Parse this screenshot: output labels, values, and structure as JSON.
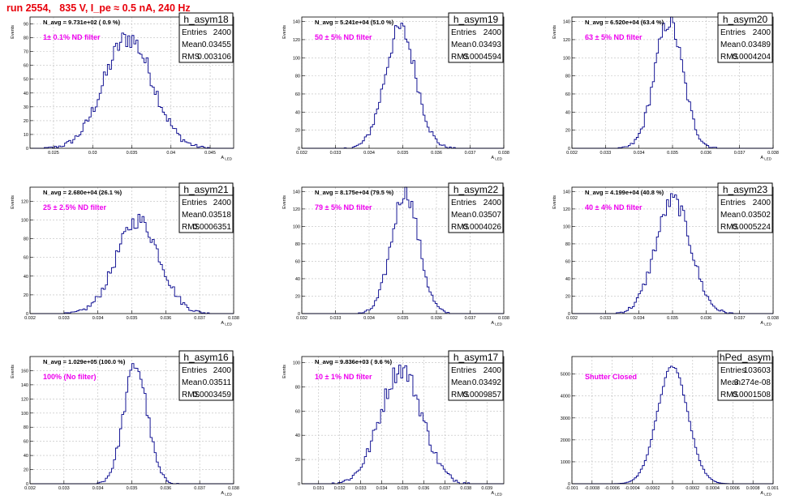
{
  "page": {
    "title": "run 2554,   835 V, I_pe ≈ 0.5 nA, 240 Hz"
  },
  "colors": {
    "title": "#e8000b",
    "histogram": "#00008b",
    "filter_text": "#ee00ee"
  },
  "chart_data": [
    {
      "type": "histogram",
      "name": "h_asym18",
      "navg": "N_avg = 9.731e+02 ( 0.9 %)",
      "filter": "1± 0.1% ND filter",
      "stats": {
        "entries": "2400",
        "mean": "0.03455",
        "rms": "0.003106"
      },
      "xlabel": "A_LED",
      "ylabel": "Events",
      "xlim": [
        0.022,
        0.048
      ],
      "ylim": [
        0,
        95
      ],
      "xticks": [
        "0.025",
        "0.03",
        "0.035",
        "0.04",
        "0.045"
      ],
      "xtick_values": [
        0.025,
        0.03,
        0.035,
        0.04,
        0.045
      ],
      "yticks": [
        "0",
        "10",
        "20",
        "30",
        "40",
        "50",
        "60",
        "70",
        "80",
        "90"
      ],
      "ytick_values": [
        0,
        10,
        20,
        30,
        40,
        50,
        60,
        70,
        80,
        90
      ],
      "mean": 0.03455,
      "sigma": 0.003106,
      "peak": 80
    },
    {
      "type": "histogram",
      "name": "h_asym19",
      "navg": "N_avg = 5.241e+04 (51.0 %)",
      "filter": "50 ± 5% ND filter",
      "stats": {
        "entries": "2400",
        "mean": "0.03493",
        "rms": "0.0004594"
      },
      "xlabel": "A_LED",
      "ylabel": "Events",
      "xlim": [
        0.032,
        0.038
      ],
      "ylim": [
        0,
        145
      ],
      "xticks": [
        "0.032",
        "0.033",
        "0.034",
        "0.035",
        "0.036",
        "0.037",
        "0.038"
      ],
      "xtick_values": [
        0.032,
        0.033,
        0.034,
        0.035,
        0.036,
        0.037,
        0.038
      ],
      "yticks": [
        "0",
        "20",
        "40",
        "60",
        "80",
        "100",
        "120",
        "140"
      ],
      "ytick_values": [
        0,
        20,
        40,
        60,
        80,
        100,
        120,
        140
      ],
      "mean": 0.03493,
      "sigma": 0.0004594,
      "peak": 132
    },
    {
      "type": "histogram",
      "name": "h_asym20",
      "navg": "N_avg = 6.520e+04 (63.4 %)",
      "filter": "63 ± 5% ND filter",
      "stats": {
        "entries": "2400",
        "mean": "0.03489",
        "rms": "0.0004204"
      },
      "xlabel": "A_LED",
      "ylabel": "Events",
      "xlim": [
        0.032,
        0.038
      ],
      "ylim": [
        0,
        145
      ],
      "xticks": [
        "0.032",
        "0.033",
        "0.034",
        "0.035",
        "0.036",
        "0.037",
        "0.038"
      ],
      "xtick_values": [
        0.032,
        0.033,
        0.034,
        0.035,
        0.036,
        0.037,
        0.038
      ],
      "yticks": [
        "0",
        "20",
        "40",
        "60",
        "80",
        "100",
        "120",
        "140"
      ],
      "ytick_values": [
        0,
        20,
        40,
        60,
        80,
        100,
        120,
        140
      ],
      "mean": 0.03489,
      "sigma": 0.0004204,
      "peak": 140
    },
    {
      "type": "histogram",
      "name": "h_asym21",
      "navg": "N_avg = 2.680e+04 (26.1 %)",
      "filter": "25 ± 2.5% ND filter",
      "stats": {
        "entries": "2400",
        "mean": "0.03518",
        "rms": "0.0006351"
      },
      "xlabel": "A_LED",
      "ylabel": "Events",
      "xlim": [
        0.032,
        0.038
      ],
      "ylim": [
        0,
        135
      ],
      "xticks": [
        "0.032",
        "0.033",
        "0.034",
        "0.035",
        "0.036",
        "0.037",
        "0.038"
      ],
      "xtick_values": [
        0.032,
        0.033,
        0.034,
        0.035,
        0.036,
        0.037,
        0.038
      ],
      "yticks": [
        "0",
        "20",
        "40",
        "60",
        "80",
        "100",
        "120"
      ],
      "ytick_values": [
        0,
        20,
        40,
        60,
        80,
        100,
        120
      ],
      "mean": 0.03518,
      "sigma": 0.0006351,
      "peak": 100
    },
    {
      "type": "histogram",
      "name": "h_asym22",
      "navg": "N_avg = 8.175e+04 (79.5 %)",
      "filter": "79 ± 5% ND filter",
      "stats": {
        "entries": "2400",
        "mean": "0.03507",
        "rms": "0.0004026"
      },
      "xlabel": "A_LED",
      "ylabel": "Events",
      "xlim": [
        0.032,
        0.038
      ],
      "ylim": [
        0,
        145
      ],
      "xticks": [
        "0.032",
        "0.033",
        "0.034",
        "0.035",
        "0.036",
        "0.037",
        "0.038"
      ],
      "xtick_values": [
        0.032,
        0.033,
        0.034,
        0.035,
        0.036,
        0.037,
        0.038
      ],
      "yticks": [
        "0",
        "20",
        "40",
        "60",
        "80",
        "100",
        "120",
        "140"
      ],
      "ytick_values": [
        0,
        20,
        40,
        60,
        80,
        100,
        120,
        140
      ],
      "mean": 0.03507,
      "sigma": 0.0004026,
      "peak": 140
    },
    {
      "type": "histogram",
      "name": "h_asym23",
      "navg": "N_avg = 4.199e+04 (40.8 %)",
      "filter": "40 ± 4% ND filter",
      "stats": {
        "entries": "2400",
        "mean": "0.03502",
        "rms": "0.0005224"
      },
      "xlabel": "A_LED",
      "ylabel": "Events",
      "xlim": [
        0.032,
        0.038
      ],
      "ylim": [
        0,
        145
      ],
      "xticks": [
        "0.032",
        "0.033",
        "0.034",
        "0.035",
        "0.036",
        "0.037",
        "0.038"
      ],
      "xtick_values": [
        0.032,
        0.033,
        0.034,
        0.035,
        0.036,
        0.037,
        0.038
      ],
      "yticks": [
        "0",
        "20",
        "40",
        "60",
        "80",
        "100",
        "120",
        "140"
      ],
      "ytick_values": [
        0,
        20,
        40,
        60,
        80,
        100,
        120,
        140
      ],
      "mean": 0.03502,
      "sigma": 0.0005224,
      "peak": 130
    },
    {
      "type": "histogram",
      "name": "h_asym16",
      "navg": "N_avg = 1.029e+05 (100.0 %)",
      "filter": "100% (No filter)",
      "stats": {
        "entries": "2400",
        "mean": "0.03511",
        "rms": "0.0003459"
      },
      "xlabel": "A_LED",
      "ylabel": "Events",
      "xlim": [
        0.032,
        0.038
      ],
      "ylim": [
        0,
        180
      ],
      "xticks": [
        "0.032",
        "0.033",
        "0.034",
        "0.035",
        "0.036",
        "0.037",
        "0.038"
      ],
      "xtick_values": [
        0.032,
        0.033,
        0.034,
        0.035,
        0.036,
        0.037,
        0.038
      ],
      "yticks": [
        "0",
        "20",
        "40",
        "60",
        "80",
        "100",
        "120",
        "140",
        "160"
      ],
      "ytick_values": [
        0,
        20,
        40,
        60,
        80,
        100,
        120,
        140,
        160
      ],
      "mean": 0.03511,
      "sigma": 0.0003459,
      "peak": 168
    },
    {
      "type": "histogram",
      "name": "h_asym17",
      "navg": "N_avg = 9.836e+03 ( 9.6 %)",
      "filter": "10 ± 1% ND filter",
      "stats": {
        "entries": "2400",
        "mean": "0.03492",
        "rms": "0.0009857"
      },
      "xlabel": "A_LED",
      "ylabel": "Events",
      "xlim": [
        0.0302,
        0.0398
      ],
      "ylim": [
        0,
        105
      ],
      "xticks": [
        "0.031",
        "0.032",
        "0.033",
        "0.034",
        "0.035",
        "0.036",
        "0.037",
        "0.038",
        "0.039"
      ],
      "xtick_values": [
        0.031,
        0.032,
        0.033,
        0.034,
        0.035,
        0.036,
        0.037,
        0.038,
        0.039
      ],
      "yticks": [
        "0",
        "20",
        "40",
        "60",
        "80",
        "100"
      ],
      "ytick_values": [
        0,
        20,
        40,
        60,
        80,
        100
      ],
      "mean": 0.03492,
      "sigma": 0.0009857,
      "peak": 95
    },
    {
      "type": "histogram",
      "name": "hPed_asym",
      "navg": "",
      "filter": "Shutter Closed",
      "stats": {
        "entries": "103603",
        "mean": "3.274e-08",
        "rms": "0.0001508"
      },
      "xlabel": "A_LED",
      "ylabel": "",
      "xlim": [
        -0.001,
        0.001
      ],
      "ylim": [
        0,
        5800
      ],
      "xticks": [
        "-0.001",
        "-0.0008",
        "-0.0006",
        "-0.0004",
        "-0.0002",
        "0",
        "0.0002",
        "0.0004",
        "0.0006",
        "0.0008",
        "0.001"
      ],
      "xtick_values": [
        -0.001,
        -0.0008,
        -0.0006,
        -0.0004,
        -0.0002,
        0,
        0.0002,
        0.0004,
        0.0006,
        0.0008,
        0.001
      ],
      "yticks": [
        "0",
        "1000",
        "2000",
        "3000",
        "4000",
        "5000"
      ],
      "ytick_values": [
        0,
        1000,
        2000,
        3000,
        4000,
        5000
      ],
      "mean": 0.0,
      "sigma": 0.0001508,
      "peak": 5350
    }
  ]
}
